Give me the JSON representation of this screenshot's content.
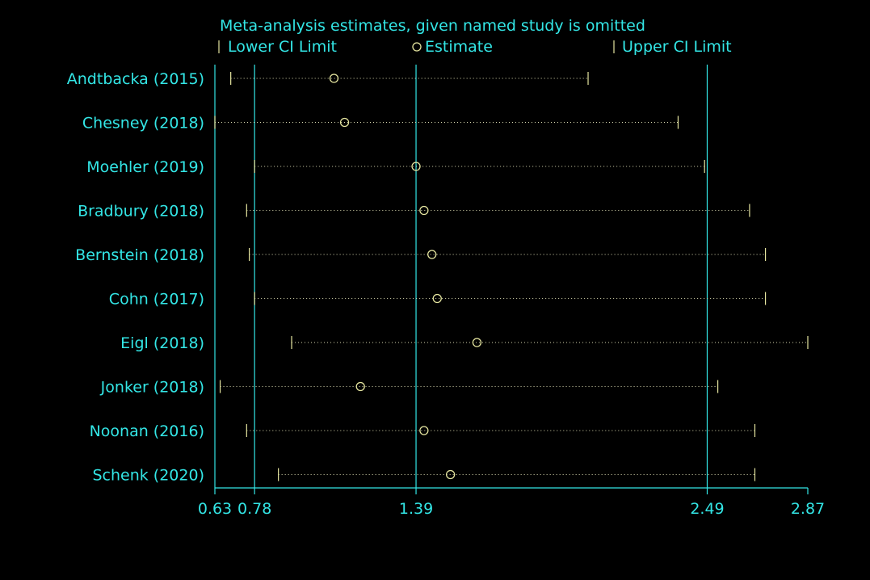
{
  "chart_data": {
    "type": "forest",
    "title": "Meta-analysis estimates, given named study is omitted",
    "legend": {
      "lower": "Lower CI Limit",
      "estimate": "Estimate",
      "upper": "Upper CI Limit",
      "placement": "top"
    },
    "studies": [
      {
        "name": "Andtbacka (2015)",
        "lower": 0.69,
        "estimate": 1.08,
        "upper": 2.04
      },
      {
        "name": "Chesney (2018)",
        "lower": 0.63,
        "estimate": 1.12,
        "upper": 2.38
      },
      {
        "name": "Moehler (2019)",
        "lower": 0.78,
        "estimate": 1.39,
        "upper": 2.48
      },
      {
        "name": "Bradbury (2018)",
        "lower": 0.75,
        "estimate": 1.42,
        "upper": 2.65
      },
      {
        "name": "Bernstein (2018)",
        "lower": 0.76,
        "estimate": 1.45,
        "upper": 2.71
      },
      {
        "name": "Cohn (2017)",
        "lower": 0.78,
        "estimate": 1.47,
        "upper": 2.71
      },
      {
        "name": "Eigl (2018)",
        "lower": 0.92,
        "estimate": 1.62,
        "upper": 2.87
      },
      {
        "name": "Jonker (2018)",
        "lower": 0.65,
        "estimate": 1.18,
        "upper": 2.53
      },
      {
        "name": "Noonan (2016)",
        "lower": 0.75,
        "estimate": 1.42,
        "upper": 2.67
      },
      {
        "name": "Schenk (2020)",
        "lower": 0.87,
        "estimate": 1.52,
        "upper": 2.67
      }
    ],
    "xticks": [
      0.63,
      0.78,
      1.39,
      2.49,
      2.87
    ],
    "xtick_labels": [
      "0.63",
      "0.78",
      "1.39",
      "2.49",
      "2.87"
    ],
    "reference_lines": [
      0.63,
      0.78,
      1.39,
      2.49
    ],
    "xlim": [
      0.63,
      2.87
    ],
    "colors": {
      "text": "#33e6e6",
      "points": "#e6e6a0",
      "background": "#000000"
    }
  }
}
